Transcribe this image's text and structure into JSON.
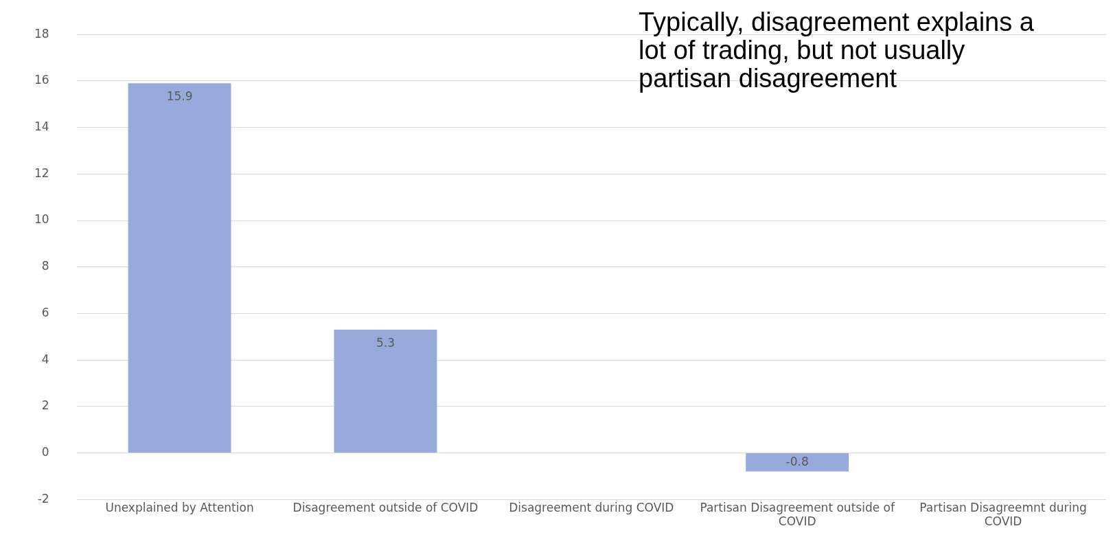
{
  "chart_data": {
    "type": "bar",
    "annotations": [
      "Typically, disagreement explains a lot of trading, but not usually partisan disagreement"
    ],
    "categories": [
      "Unexplained by Attention",
      "Disagreement outside of COVID",
      "Disagreement during COVID",
      "Partisan Disagreement outside of COVID",
      "Partisan Disagreemnt during COVID"
    ],
    "values": [
      15.9,
      5.3,
      null,
      -0.8,
      null
    ],
    "color": "#98aadc",
    "ylim": [
      -2,
      18
    ],
    "yticks": [
      -2,
      0,
      2,
      4,
      6,
      8,
      10,
      12,
      14,
      16,
      18
    ],
    "grid": "y",
    "legend": false,
    "data_labels": true
  }
}
